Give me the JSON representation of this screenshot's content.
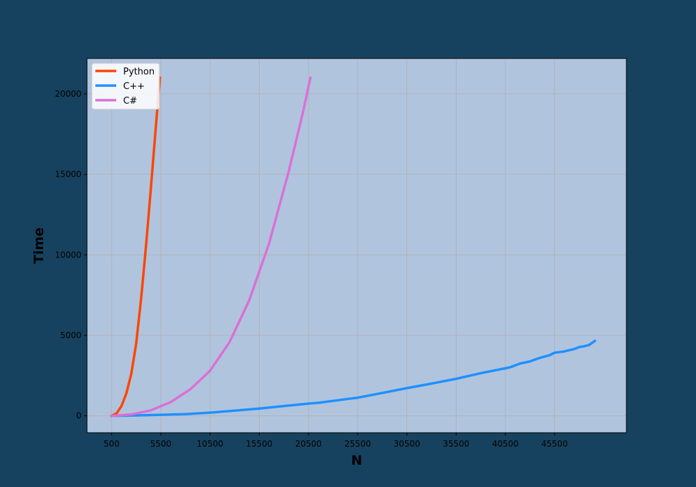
{
  "colors": {
    "figure_bg": "#17425F",
    "plot_bg": "#B0C4DE",
    "grid": "#B0B0B0"
  },
  "chart_data": {
    "type": "line",
    "title": "",
    "xlabel": "N",
    "ylabel": "Time",
    "xlim": [
      -2000,
      52800
    ],
    "ylim": [
      -1050,
      22200
    ],
    "grid": true,
    "legend_position": "top-left",
    "x_ticks": [
      500,
      5500,
      10500,
      15500,
      20500,
      25500,
      30500,
      35500,
      40500,
      45500
    ],
    "y_ticks": [
      0,
      5000,
      10000,
      15000,
      20000
    ],
    "series": [
      {
        "name": "Python",
        "color": "#FF4500",
        "x": [
          500,
          1000,
          1500,
          2000,
          2500,
          3000,
          3500,
          4000,
          4500,
          5000,
          5400
        ],
        "y": [
          0,
          150,
          600,
          1400,
          2600,
          4500,
          7300,
          10600,
          14200,
          18000,
          21000
        ]
      },
      {
        "name": "C++",
        "color": "#1E90FF",
        "x": [
          500,
          3000,
          5500,
          8000,
          10500,
          13000,
          15500,
          18000,
          20500,
          21500,
          23000,
          25500,
          28000,
          30500,
          33000,
          35500,
          38000,
          40500,
          41000,
          42000,
          43000,
          44000,
          45000,
          45500,
          46500,
          47500,
          48000,
          48500,
          49000,
          49600
        ],
        "y": [
          0,
          25,
          60,
          110,
          200,
          320,
          450,
          610,
          760,
          810,
          930,
          1130,
          1420,
          1720,
          2000,
          2300,
          2650,
          2950,
          3020,
          3250,
          3380,
          3600,
          3770,
          3920,
          4000,
          4150,
          4270,
          4320,
          4400,
          4650
        ]
      },
      {
        "name": "C#",
        "color": "#DA70D6",
        "x": [
          500,
          2500,
          4500,
          6500,
          8500,
          10500,
          12500,
          14500,
          16500,
          18500,
          20000,
          20700
        ],
        "y": [
          0,
          90,
          340,
          850,
          1650,
          2800,
          4600,
          7200,
          10700,
          15200,
          19000,
          21000
        ]
      }
    ]
  }
}
